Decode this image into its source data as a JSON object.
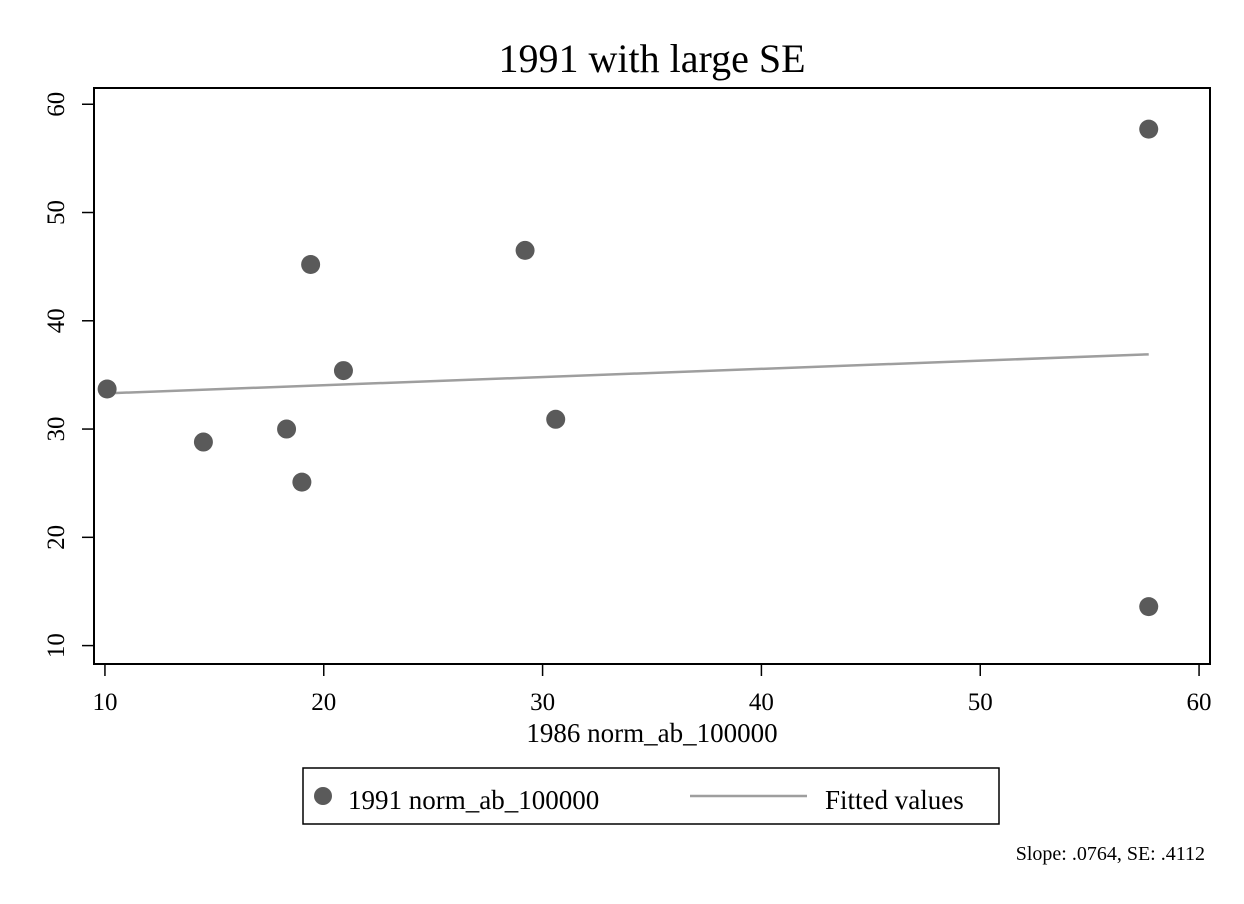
{
  "chart_data": {
    "type": "scatter",
    "title": "1991 with large SE",
    "xlabel": "1986 norm_ab_100000",
    "ylabel": "",
    "xlim": [
      9.5,
      60.5
    ],
    "ylim": [
      8.3,
      61.5
    ],
    "xticks": [
      "10",
      "20",
      "30",
      "40",
      "50",
      "60"
    ],
    "xtick_values": [
      10,
      20,
      30,
      40,
      50,
      60
    ],
    "yticks": [
      "10",
      "20",
      "30",
      "40",
      "50",
      "60"
    ],
    "ytick_values": [
      10,
      20,
      30,
      40,
      50,
      60
    ],
    "grid": false,
    "legend_position": "bottom",
    "series": [
      {
        "name": "1991 norm_ab_100000",
        "type": "scatter",
        "color": "#5a5a5a",
        "points": [
          {
            "x": 10.1,
            "y": 33.7
          },
          {
            "x": 14.5,
            "y": 28.8
          },
          {
            "x": 18.3,
            "y": 30.0
          },
          {
            "x": 19.0,
            "y": 25.1
          },
          {
            "x": 19.4,
            "y": 45.2
          },
          {
            "x": 20.9,
            "y": 35.4
          },
          {
            "x": 29.2,
            "y": 46.5
          },
          {
            "x": 30.6,
            "y": 30.9
          },
          {
            "x": 57.7,
            "y": 57.7
          },
          {
            "x": 57.7,
            "y": 13.6
          }
        ]
      },
      {
        "name": "Fitted values",
        "type": "line",
        "color": "#9e9e9e",
        "points": [
          {
            "x": 10.1,
            "y": 33.3
          },
          {
            "x": 57.7,
            "y": 36.9
          }
        ]
      }
    ],
    "note": "Slope: .0764, SE: .4112"
  }
}
